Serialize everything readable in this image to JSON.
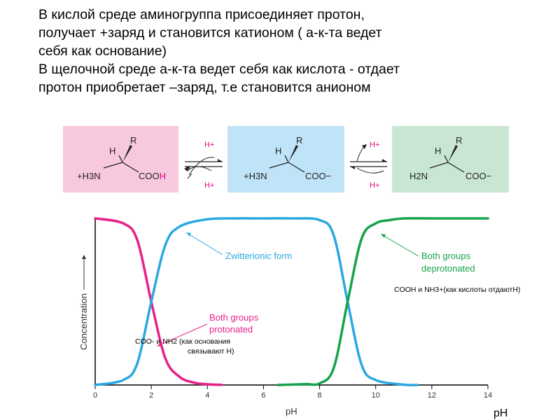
{
  "heading": {
    "line1": "В кислой среде аминогруппа присоединяет протон,",
    "line2": "получает +заряд  и становится катионом ( а-к-та ведет",
    "line3": "себя как основание)",
    "line4": "В щелочной среде а-к-та ведет себя как кислота - отдает",
    "line5": "протон приобретает –заряд, т.е становится анионом"
  },
  "scheme": {
    "boxes": [
      {
        "color": "#f7c8de",
        "h": "H",
        "r": "R",
        "left": "+H3N",
        "right": "COOH",
        "right_part1": "COO",
        "right_part2": "H"
      },
      {
        "color": "#bfe4f7",
        "h": "H",
        "r": "R",
        "left": "+H3N",
        "right": "COO−"
      },
      {
        "color": "#c9e6d3",
        "h": "H",
        "r": "R",
        "left": "H2N",
        "right": "COO−"
      }
    ],
    "proton_label": "H+",
    "proton_color": "#e6007e"
  },
  "chart_data": {
    "type": "line",
    "xlabel": "pH",
    "ylabel": "Concentration",
    "xlim": [
      0,
      14
    ],
    "xticks": [
      0,
      2,
      4,
      6,
      8,
      10,
      12,
      14
    ],
    "series": [
      {
        "color": "#e8208a",
        "x": [
          0,
          1,
          1.5,
          2,
          2.5,
          3,
          3.5,
          4,
          4.5
        ],
        "y": [
          1,
          0.97,
          0.87,
          0.5,
          0.16,
          0.05,
          0.015,
          0.004,
          0.001
        ]
      },
      {
        "color": "#2aa8e0",
        "x": [
          0,
          1,
          1.5,
          2,
          2.5,
          3,
          4,
          5,
          6,
          7,
          8,
          8.5,
          9,
          9.5,
          10,
          11,
          11.5
        ],
        "y": [
          0,
          0.03,
          0.13,
          0.5,
          0.84,
          0.95,
          0.995,
          1,
          1,
          1,
          0.99,
          0.9,
          0.5,
          0.12,
          0.03,
          0.002,
          0
        ]
      },
      {
        "color": "#16a34a",
        "x": [
          6.5,
          7.5,
          8,
          8.5,
          9,
          9.5,
          10,
          10.5,
          11,
          12,
          13,
          14
        ],
        "y": [
          0,
          0.005,
          0.01,
          0.1,
          0.5,
          0.88,
          0.97,
          0.99,
          1,
          1,
          1,
          1
        ]
      }
    ],
    "annotations": [
      {
        "text": "Zwitterionic form",
        "color": "#2aa8e0"
      },
      {
        "text": "Both groups",
        "text2": "deprotonated",
        "color": "#16a34a"
      },
      {
        "text": "Both groups",
        "text2": "protonated",
        "color": "#e8208a"
      }
    ]
  },
  "notes": {
    "acid_note": "COOH и NH3+(как кислоты отдаютН)",
    "base_note_line1": "COO-  и NH2 (как основания",
    "base_note_line2": "связывают Н)",
    "ph_bottom": "pH"
  }
}
